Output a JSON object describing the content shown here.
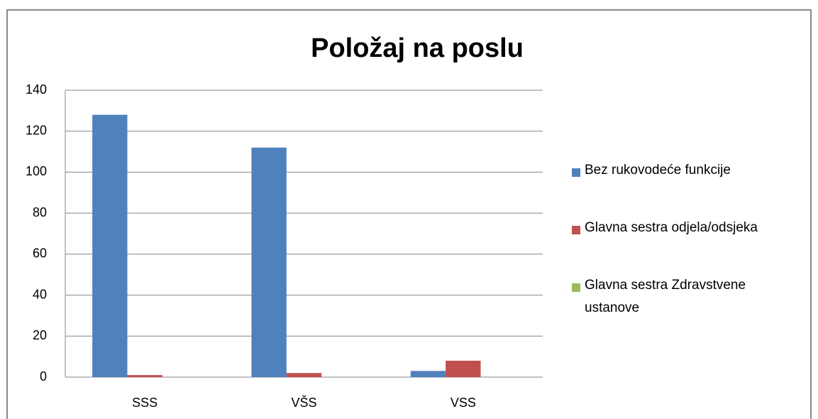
{
  "chart_data": {
    "type": "bar",
    "title": "Položaj na poslu",
    "categories": [
      "SSS",
      "VŠS",
      "VSS"
    ],
    "series": [
      {
        "name": "Bez rukovodeće funkcije",
        "color": "#4f81bd",
        "values": [
          128,
          112,
          3
        ]
      },
      {
        "name": "Glavna sestra odjela/odsjeka",
        "color": "#c0504d",
        "values": [
          1,
          2,
          8
        ]
      },
      {
        "name": "Glavna sestra Zdravstvene ustanove",
        "color": "#9bbb59",
        "values": [
          0,
          0,
          0
        ]
      }
    ],
    "ylim": [
      0,
      140
    ],
    "yticks": [
      0,
      20,
      40,
      60,
      80,
      100,
      120,
      140
    ],
    "grid": true,
    "legend": "right"
  }
}
